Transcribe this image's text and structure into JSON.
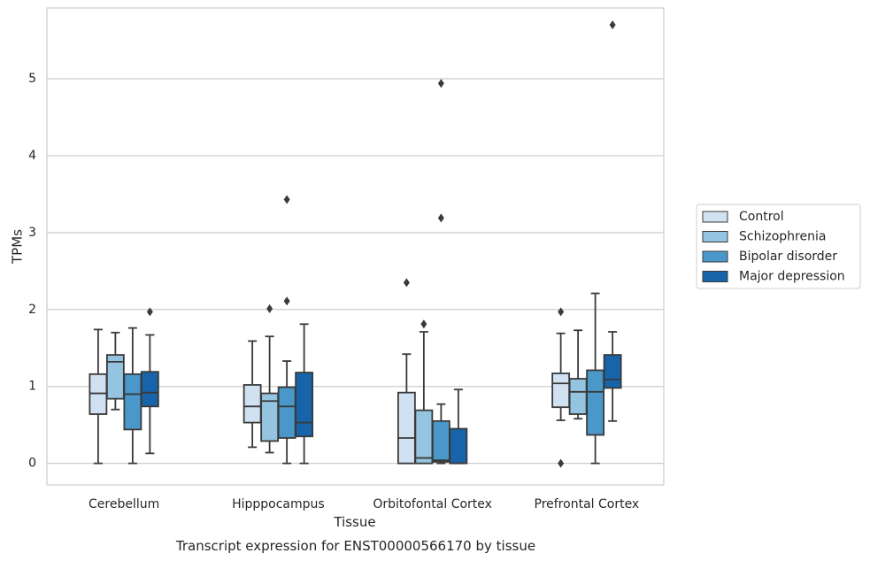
{
  "caption": "Transcript expression for ENST00000566170 by tissue",
  "colors": {
    "Control": "#d0e1f2",
    "Schizophrenia": "#94c4df",
    "Bipolar disorder": "#4a98c9",
    "Major depression": "#1764ab",
    "box_edge": "#3a3a3a",
    "grid": "#cccccc",
    "frame": "#cccccc"
  },
  "chart_data": {
    "type": "box",
    "xlabel": "Tissue",
    "ylabel": "TPMs",
    "ylim": [
      -0.28,
      5.92
    ],
    "yticks": [
      0,
      1,
      2,
      3,
      4,
      5
    ],
    "grid": "horizontal",
    "legend_position": "outside-right",
    "categories": [
      "Cerebellum",
      "Hipppocampus",
      "Orbitofontal Cortex",
      "Prefrontal Cortex"
    ],
    "series": [
      {
        "name": "Control",
        "boxes": [
          {
            "whislo": 0.0,
            "q1": 0.64,
            "med": 0.91,
            "q3": 1.16,
            "whishi": 1.74,
            "fliers": []
          },
          {
            "whislo": 0.21,
            "q1": 0.53,
            "med": 0.74,
            "q3": 1.02,
            "whishi": 1.59,
            "fliers": []
          },
          {
            "whislo": 0.0,
            "q1": 0.0,
            "med": 0.33,
            "q3": 0.92,
            "whishi": 1.42,
            "fliers": [
              2.35
            ]
          },
          {
            "whislo": 0.56,
            "q1": 0.73,
            "med": 1.04,
            "q3": 1.17,
            "whishi": 1.69,
            "fliers": [
              0.0,
              1.97
            ]
          }
        ]
      },
      {
        "name": "Schizophrenia",
        "boxes": [
          {
            "whislo": 0.7,
            "q1": 0.84,
            "med": 1.32,
            "q3": 1.41,
            "whishi": 1.7,
            "fliers": []
          },
          {
            "whislo": 0.14,
            "q1": 0.29,
            "med": 0.81,
            "q3": 0.91,
            "whishi": 1.65,
            "fliers": [
              2.01
            ]
          },
          {
            "whislo": 0.0,
            "q1": 0.0,
            "med": 0.07,
            "q3": 0.69,
            "whishi": 1.71,
            "fliers": [
              1.81
            ]
          },
          {
            "whislo": 0.58,
            "q1": 0.64,
            "med": 0.93,
            "q3": 1.1,
            "whishi": 1.73,
            "fliers": []
          }
        ]
      },
      {
        "name": "Bipolar disorder",
        "boxes": [
          {
            "whislo": 0.0,
            "q1": 0.44,
            "med": 0.9,
            "q3": 1.16,
            "whishi": 1.76,
            "fliers": []
          },
          {
            "whislo": 0.0,
            "q1": 0.33,
            "med": 0.74,
            "q3": 0.99,
            "whishi": 1.33,
            "fliers": [
              2.11,
              3.43
            ]
          },
          {
            "whislo": 0.0,
            "q1": 0.02,
            "med": 0.04,
            "q3": 0.55,
            "whishi": 0.77,
            "fliers": [
              3.19,
              4.94
            ]
          },
          {
            "whislo": 0.0,
            "q1": 0.37,
            "med": 0.93,
            "q3": 1.21,
            "whishi": 2.21,
            "fliers": []
          }
        ]
      },
      {
        "name": "Major depression",
        "boxes": [
          {
            "whislo": 0.13,
            "q1": 0.74,
            "med": 0.92,
            "q3": 1.19,
            "whishi": 1.67,
            "fliers": [
              1.97
            ]
          },
          {
            "whislo": 0.0,
            "q1": 0.35,
            "med": 0.53,
            "q3": 1.18,
            "whishi": 1.81,
            "fliers": []
          },
          {
            "whislo": 0.0,
            "q1": 0.0,
            "med": 0.0,
            "q3": 0.45,
            "whishi": 0.96,
            "fliers": []
          },
          {
            "whislo": 0.55,
            "q1": 0.98,
            "med": 1.09,
            "q3": 1.41,
            "whishi": 1.71,
            "fliers": [
              5.7
            ]
          }
        ]
      }
    ]
  }
}
